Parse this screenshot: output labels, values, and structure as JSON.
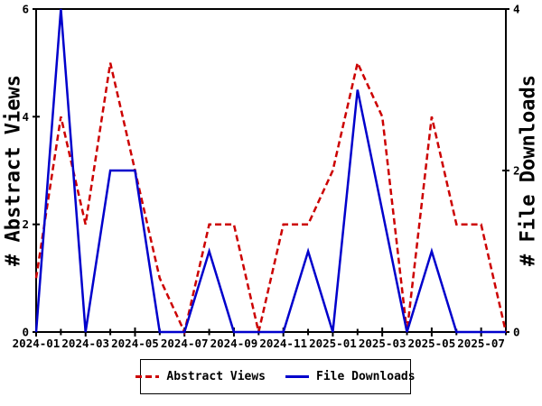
{
  "chart_data": {
    "type": "line",
    "title": "",
    "x_categories": [
      "2024-01",
      "2024-02",
      "2024-03",
      "2024-04",
      "2024-05",
      "2024-06",
      "2024-07",
      "2024-08",
      "2024-09",
      "2024-10",
      "2024-11",
      "2024-12",
      "2025-01",
      "2025-02",
      "2025-03",
      "2025-04",
      "2025-05",
      "2025-06",
      "2025-07",
      "2025-08"
    ],
    "x_major_ticklabels": [
      "2024-01",
      "2024-03",
      "2024-05",
      "2024-07",
      "2024-09",
      "2024-11",
      "2025-01",
      "2025-03",
      "2025-05",
      "2025-07"
    ],
    "ylabel_left": "# Abstract Views",
    "ylabel_right": "# File Downloads",
    "y_left": {
      "min": 0,
      "max": 6,
      "ticks": [
        0,
        2,
        4,
        6
      ]
    },
    "y_right": {
      "min": 0,
      "max": 4,
      "ticks": [
        0,
        2,
        4
      ]
    },
    "grid": false,
    "legend_position": "bottom-center",
    "axis_color": "#000000",
    "series": [
      {
        "name": "Abstract Views",
        "axis": "left",
        "color": "#cc0000",
        "style": "dashed",
        "values": [
          1,
          4,
          2,
          5,
          3,
          1,
          0,
          2,
          2,
          0,
          2,
          2,
          3,
          5,
          4,
          0,
          4,
          2,
          2,
          0
        ]
      },
      {
        "name": "File Downloads",
        "axis": "right",
        "color": "#0000cc",
        "style": "solid",
        "values": [
          0,
          4,
          0,
          2,
          2,
          0,
          0,
          1,
          0,
          0,
          0,
          1,
          0,
          3,
          1.5,
          0,
          1,
          0,
          0,
          0
        ]
      }
    ],
    "legend": [
      "Abstract Views",
      "File Downloads"
    ]
  }
}
